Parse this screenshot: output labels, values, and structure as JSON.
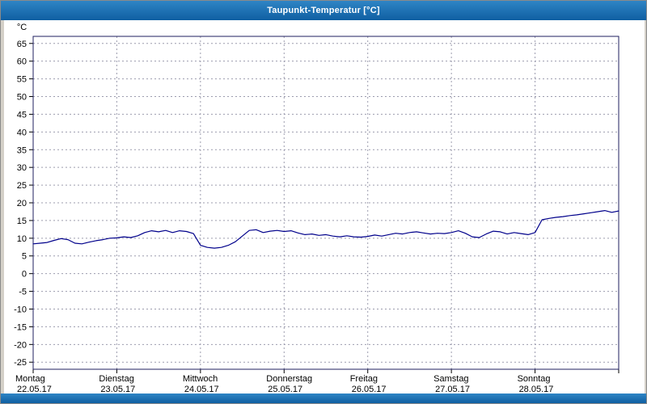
{
  "window": {
    "title": "Taupunkt-Temperatur [°C]"
  },
  "colors": {
    "line": "#00008b",
    "grid": "#9c9cae",
    "plot_border": "#1f1f5f",
    "axis_text": "#000000"
  },
  "chart_data": {
    "type": "line",
    "title": "Taupunkt-Temperatur [°C]",
    "ylabel": "°C",
    "xlabel": "",
    "ylim": [
      -27,
      67
    ],
    "ytick_step": 5,
    "yticks": [
      65,
      60,
      55,
      50,
      45,
      40,
      35,
      30,
      25,
      20,
      15,
      10,
      5,
      0,
      -5,
      -10,
      -15,
      -20,
      -25
    ],
    "grid": true,
    "legend_position": "none",
    "x_days": [
      {
        "name": "Montag",
        "date": "22.05.17"
      },
      {
        "name": "Dienstag",
        "date": "23.05.17"
      },
      {
        "name": "Mittwoch",
        "date": "24.05.17"
      },
      {
        "name": "Donnerstag",
        "date": "25.05.17"
      },
      {
        "name": "Freitag",
        "date": "26.05.17"
      },
      {
        "name": "Samstag",
        "date": "27.05.17"
      },
      {
        "name": "Sonntag",
        "date": "28.05.17"
      }
    ],
    "series": [
      {
        "name": "Taupunkt-Temperatur",
        "unit": "°C",
        "values": [
          8.4,
          8.6,
          8.8,
          9.4,
          9.9,
          9.6,
          8.6,
          8.4,
          8.9,
          9.3,
          9.6,
          10.0,
          10.1,
          10.4,
          10.2,
          10.7,
          11.6,
          12.1,
          11.8,
          12.2,
          11.6,
          12.1,
          11.9,
          11.3,
          8.0,
          7.4,
          7.2,
          7.4,
          8.0,
          9.0,
          10.6,
          12.2,
          12.4,
          11.6,
          12.0,
          12.2,
          11.9,
          12.1,
          11.5,
          11.0,
          11.2,
          10.8,
          11.0,
          10.6,
          10.4,
          10.7,
          10.4,
          10.3,
          10.5,
          10.9,
          10.6,
          11.0,
          11.4,
          11.2,
          11.6,
          11.8,
          11.5,
          11.2,
          11.4,
          11.3,
          11.6,
          12.1,
          11.4,
          10.4,
          10.2,
          11.2,
          12.0,
          11.8,
          11.2,
          11.6,
          11.3,
          11.0,
          11.6,
          15.2,
          15.6,
          15.9,
          16.1,
          16.4,
          16.6,
          16.9,
          17.2,
          17.5,
          17.8,
          17.3,
          17.7
        ]
      }
    ]
  }
}
